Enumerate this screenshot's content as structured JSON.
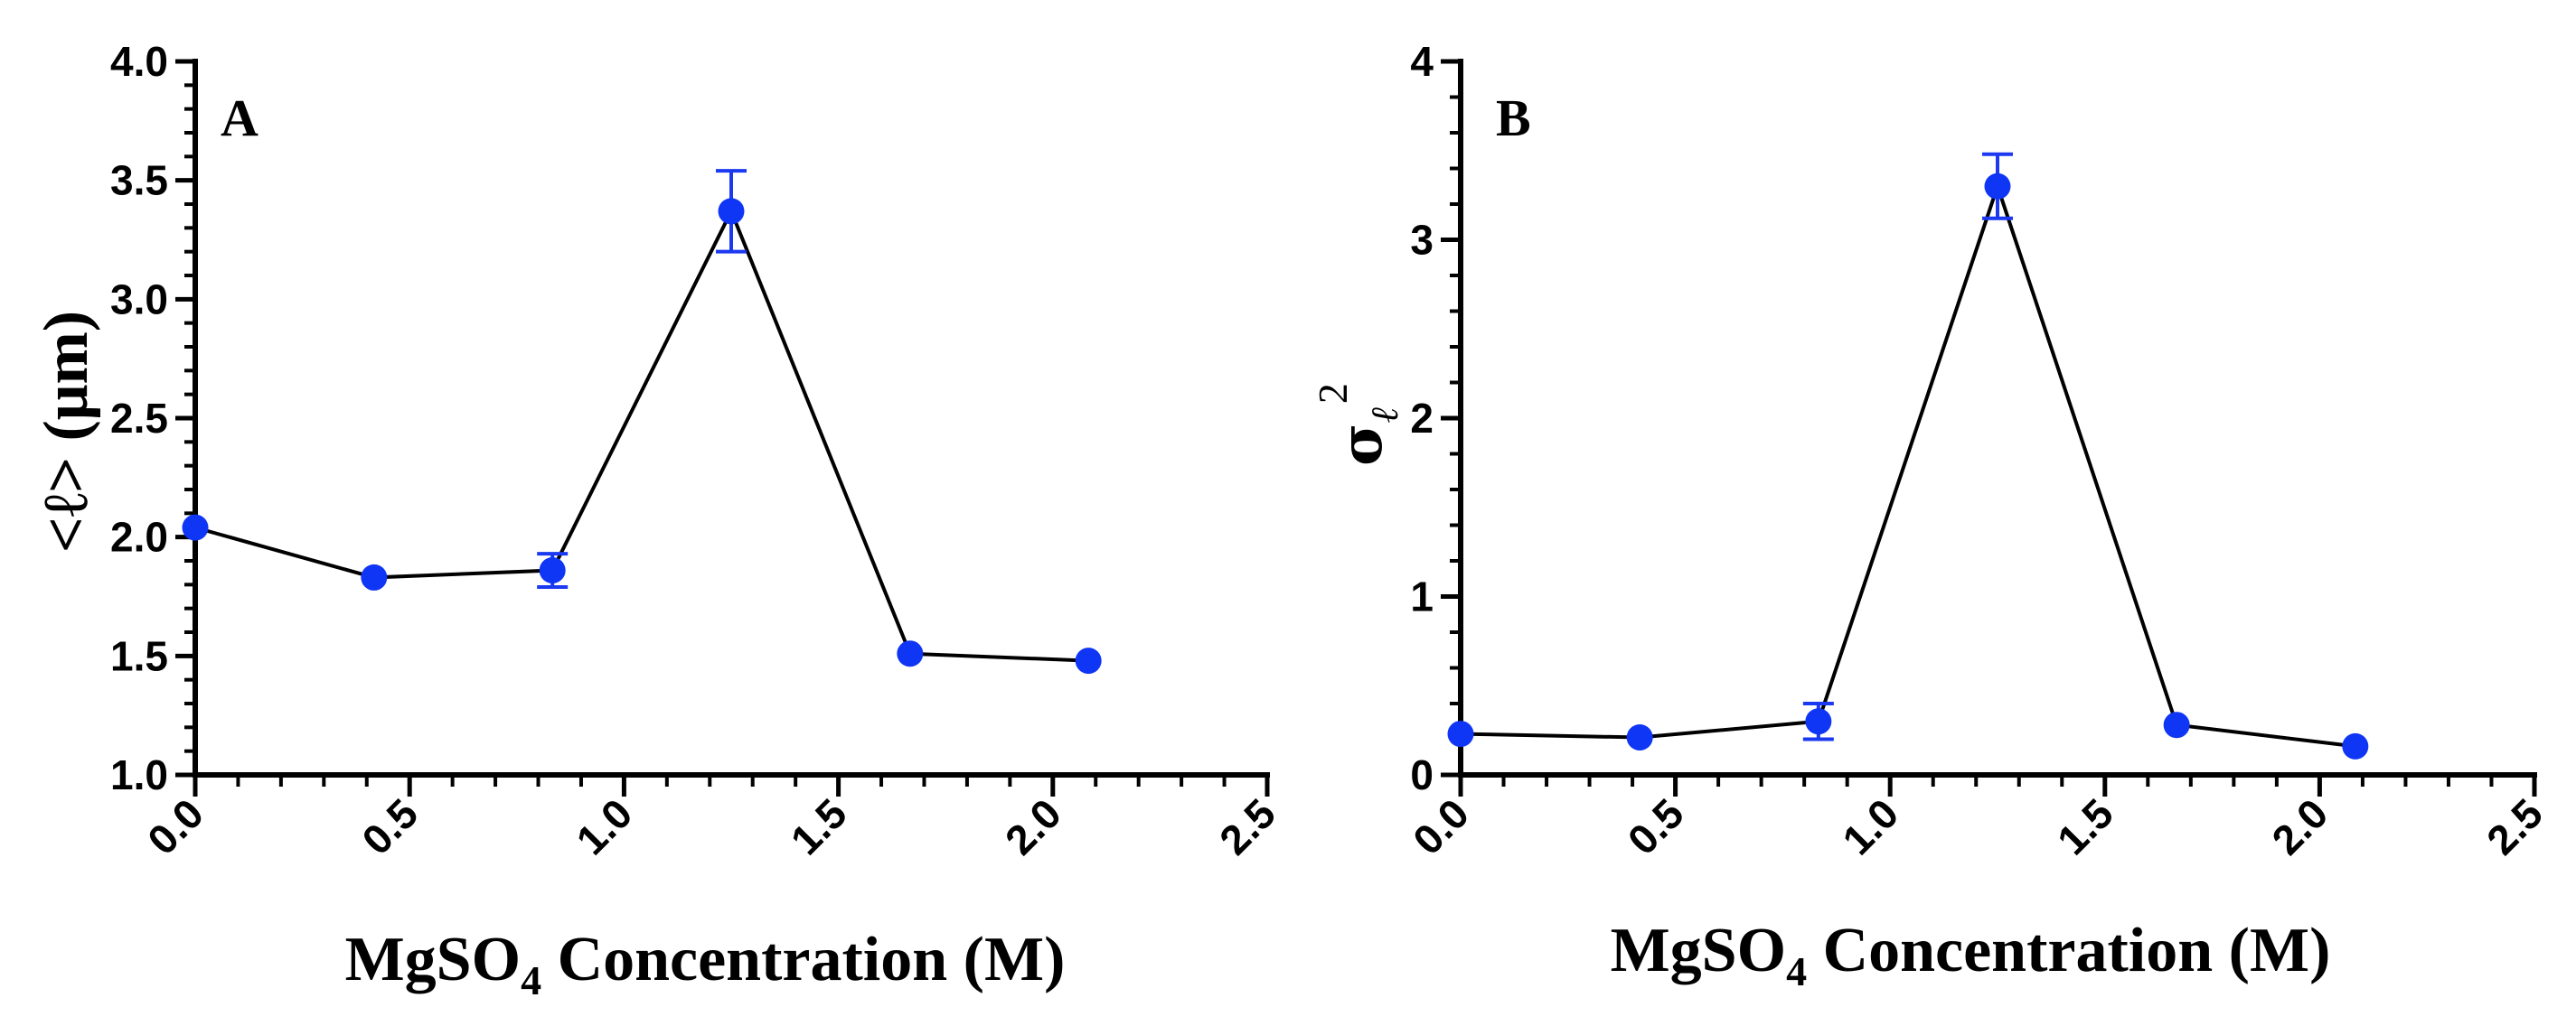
{
  "colors": {
    "marker": "#0f35f5",
    "line": "#000000",
    "error_bar": "#1a39f0"
  },
  "chart_data": [
    {
      "type": "line",
      "panel_label": "A",
      "xlabel": {
        "prefix": "MgSO",
        "subscript": "4",
        "suffix": " Concentration (M)"
      },
      "ylabel": "<ℓ> (μm)",
      "xlim": [
        0.0,
        2.5
      ],
      "ylim": [
        1.0,
        4.0
      ],
      "x_ticks": [
        "0.0",
        "0.5",
        "1.0",
        "1.5",
        "2.0",
        "2.5"
      ],
      "y_ticks": [
        "1.0",
        "1.5",
        "2.0",
        "2.5",
        "3.0",
        "3.5",
        "4.0"
      ],
      "x_minor_per_major": 4,
      "y_minor_per_major": 4,
      "series": [
        {
          "name": "<ℓ>",
          "x": [
            0.0,
            0.417,
            0.833,
            1.25,
            1.667,
            2.083
          ],
          "y": [
            2.04,
            1.83,
            1.86,
            3.37,
            1.51,
            1.48
          ],
          "error": [
            0.0,
            0.0,
            0.07,
            0.17,
            0.0,
            0.0
          ]
        }
      ]
    },
    {
      "type": "line",
      "panel_label": "B",
      "xlabel": {
        "prefix": "MgSO",
        "subscript": "4",
        "suffix": " Concentration (M)"
      },
      "ylabel": {
        "symbol": "σ",
        "subscript": "ℓ",
        "superscript": "2"
      },
      "xlim": [
        0.0,
        2.5
      ],
      "ylim": [
        0,
        4
      ],
      "x_ticks": [
        "0.0",
        "0.5",
        "1.0",
        "1.5",
        "2.0",
        "2.5"
      ],
      "y_ticks": [
        "0",
        "1",
        "2",
        "3",
        "4"
      ],
      "x_minor_per_major": 4,
      "y_minor_per_major": 4,
      "series": [
        {
          "name": "σℓ²",
          "x": [
            0.0,
            0.417,
            0.833,
            1.25,
            1.667,
            2.083
          ],
          "y": [
            0.23,
            0.21,
            0.3,
            3.3,
            0.28,
            0.16
          ],
          "error": [
            0.0,
            0.0,
            0.1,
            0.18,
            0.0,
            0.0
          ]
        }
      ]
    }
  ]
}
